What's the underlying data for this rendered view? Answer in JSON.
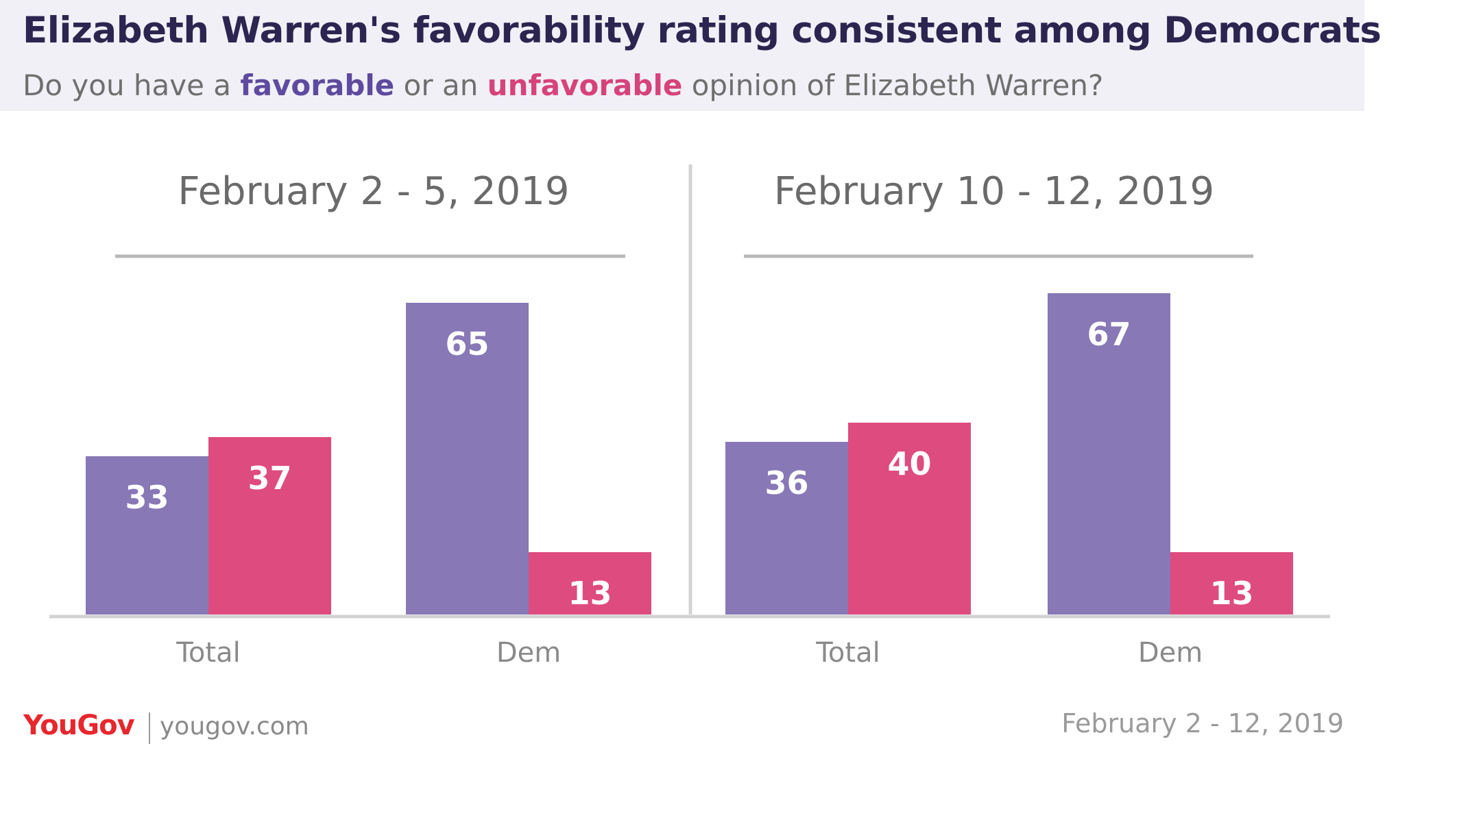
{
  "header": {
    "title": "Elizabeth Warren's favorability rating consistent among Democrats",
    "subtitle_pre": "Do you have a",
    "subtitle_favorable": "favorable",
    "subtitle_mid": "or an",
    "subtitle_unfavorable": "unfavorable",
    "subtitle_post": "opinion of Elizabeth Warren?"
  },
  "colors": {
    "favorable": "#8878b6",
    "unfavorable": "#de4b7f",
    "axis": "#d3d3d3",
    "panel_title": "#6a6a6a",
    "tick_label": "#8a8a8a"
  },
  "chart_data": {
    "type": "bar",
    "series_names": [
      "favorable",
      "unfavorable"
    ],
    "panels": [
      {
        "title": "February 2 - 5, 2019",
        "categories": [
          "Total",
          "Dem"
        ],
        "series": [
          {
            "name": "favorable",
            "values": [
              33,
              65
            ]
          },
          {
            "name": "unfavorable",
            "values": [
              37,
              13
            ]
          }
        ]
      },
      {
        "title": "February 10 - 12, 2019",
        "categories": [
          "Total",
          "Dem"
        ],
        "series": [
          {
            "name": "favorable",
            "values": [
              36,
              67
            ]
          },
          {
            "name": "unfavorable",
            "values": [
              40,
              13
            ]
          }
        ]
      }
    ],
    "ylim": [
      0,
      70
    ],
    "grid": false,
    "legend": "subtitle"
  },
  "footer": {
    "brand_you": "You",
    "brand_gov": "Gov",
    "site": "yougov.com",
    "date_range": "February 2 - 12, 2019"
  }
}
